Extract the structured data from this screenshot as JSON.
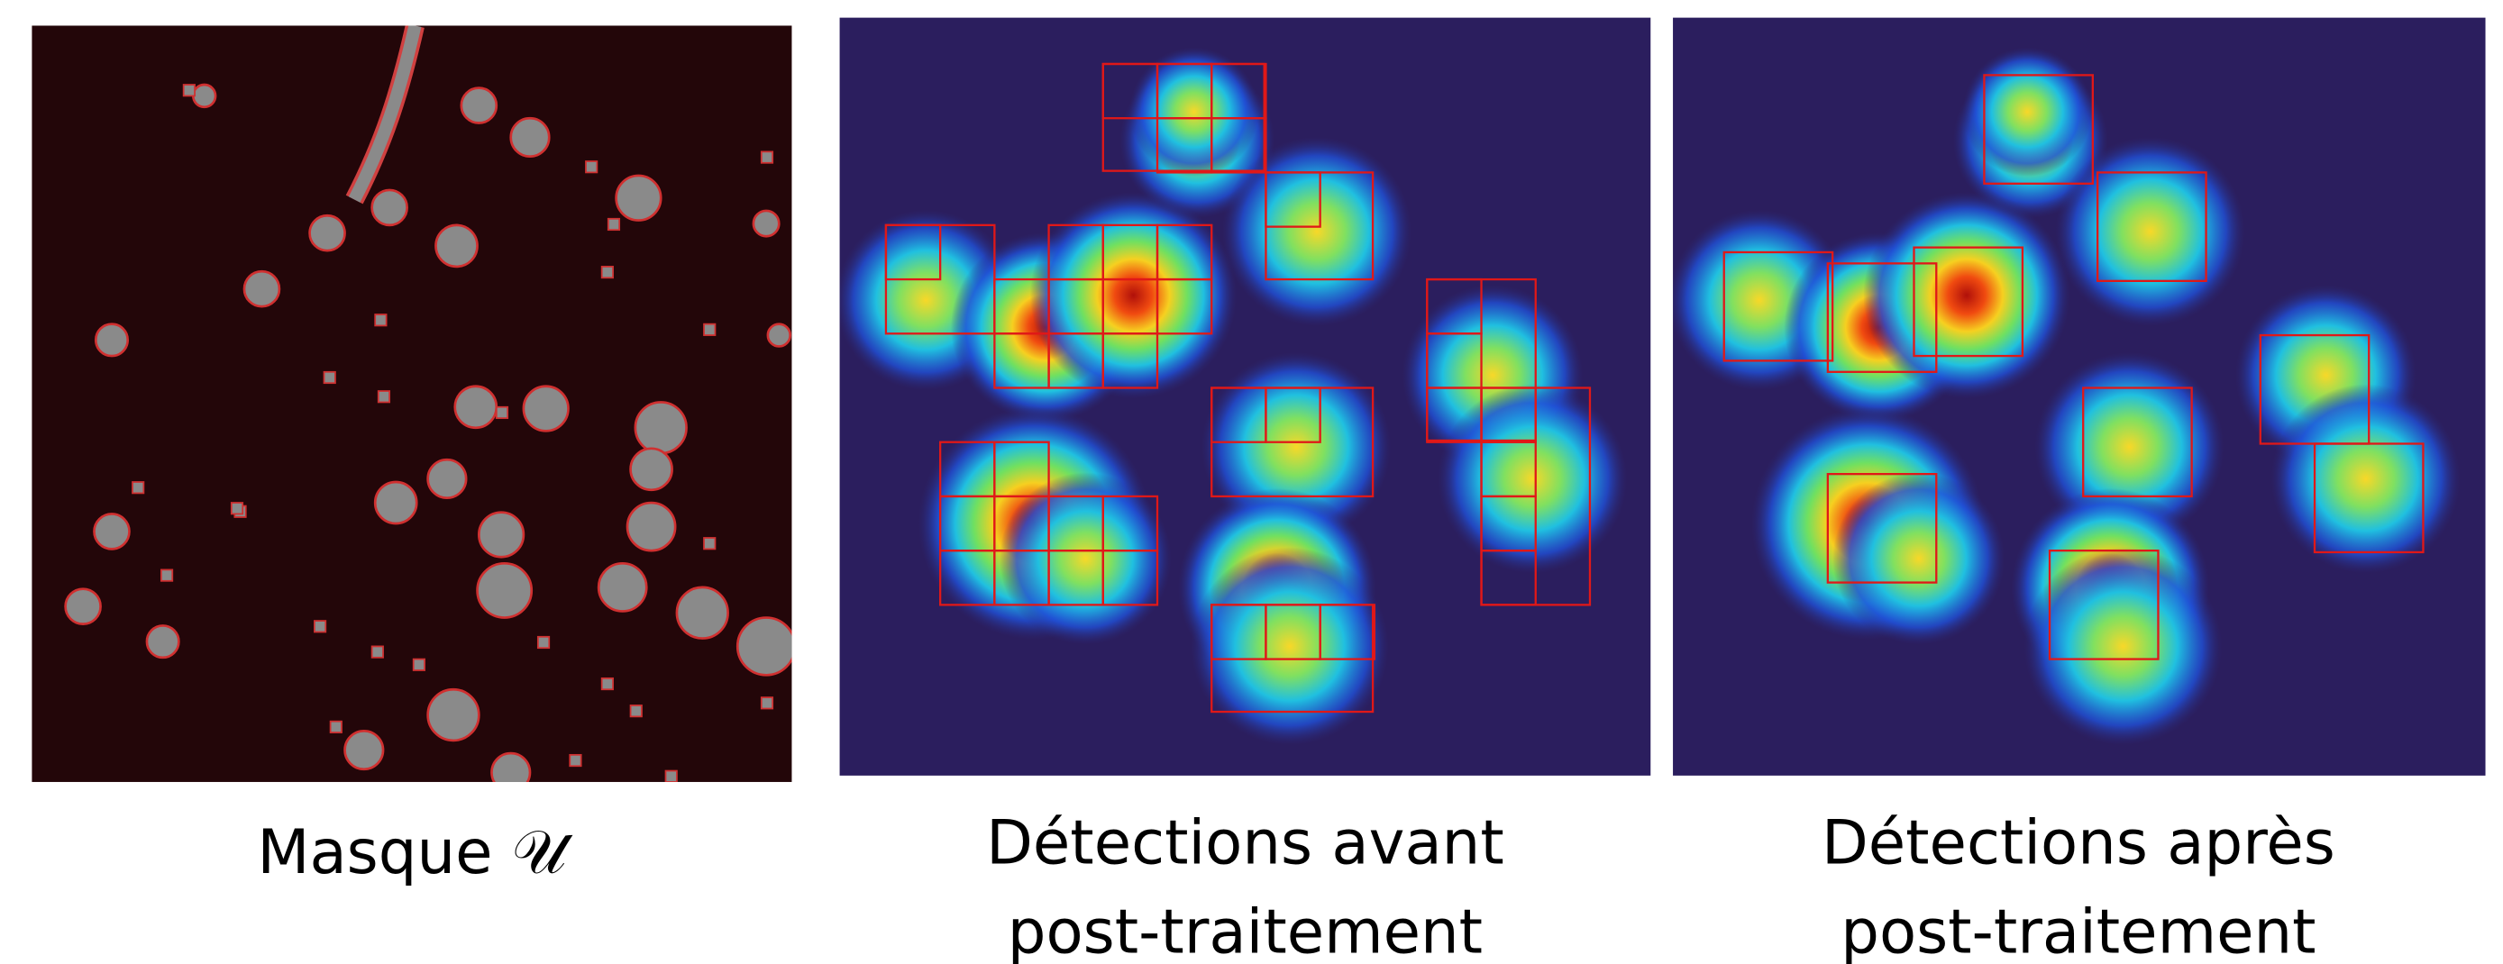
{
  "panels": [
    {
      "caption": [
        "Masque 𝒰"
      ]
    },
    {
      "caption": [
        "Détections avant",
        "post-traitement"
      ]
    },
    {
      "caption": [
        "Détections après",
        "post-traitement"
      ]
    }
  ]
}
